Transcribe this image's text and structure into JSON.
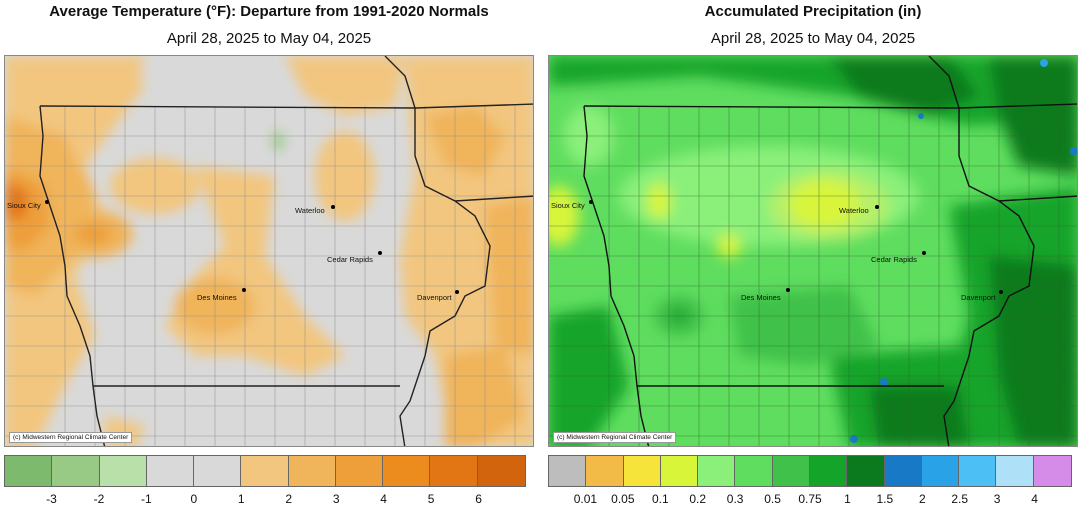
{
  "temp_panel": {
    "title": "Average Temperature (°F): Departure from 1991-2020 Normals",
    "date_range": "April 28, 2025 to May 04, 2025",
    "credit": "(c) Midwestern Regional Climate Center",
    "legend_colors": [
      "#7dba6e",
      "#98ca86",
      "#b9e0a8",
      "#d9d9d9",
      "#d9d9d9",
      "#f2c67f",
      "#f0b45a",
      "#ee9f3a",
      "#ec8b1e",
      "#e27614",
      "#d2640e"
    ],
    "legend_ticks": [
      "-3",
      "-2",
      "-1",
      "0",
      "1",
      "2",
      "3",
      "4",
      "5",
      "6"
    ]
  },
  "precip_panel": {
    "title": "Accumulated Precipitation (in)",
    "date_range": "April 28, 2025 to May 04, 2025",
    "credit": "(c) Midwestern Regional Climate Center",
    "legend_colors": [
      "#bdbdbd",
      "#f2bb47",
      "#f7e43a",
      "#d9f53a",
      "#8af07a",
      "#5fdd5f",
      "#3fc14a",
      "#14a42a",
      "#0b7a1f",
      "#1879c7",
      "#2aa2e8",
      "#4cc0f5",
      "#aee0f7",
      "#d58ce8"
    ],
    "legend_ticks": [
      "0.01",
      "0.05",
      "0.1",
      "0.2",
      "0.3",
      "0.5",
      "0.75",
      "1",
      "1.5",
      "2",
      "2.5",
      "3",
      "4"
    ]
  },
  "cities": {
    "sioux_city": "Sioux City",
    "waterloo": "Waterloo",
    "cedar_rapids": "Cedar Rapids",
    "des_moines": "Des Moines",
    "davenport": "Davenport"
  }
}
